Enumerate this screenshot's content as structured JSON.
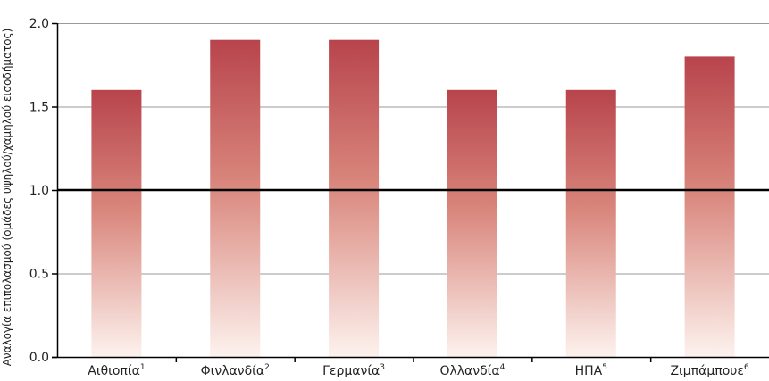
{
  "chart_data": {
    "type": "bar",
    "ylabel": "Αναλογία επιπολασμού (ομάδες υψηλού/χαμηλού εισοδήματος)",
    "ylim": [
      0,
      2.0
    ],
    "yticks": [
      "0.0",
      "0.5",
      "1.0",
      "1.5",
      "2.0"
    ],
    "reference_line": 1.0,
    "grid": true,
    "categories": [
      {
        "name": "Αιθιοπία",
        "sup": "1"
      },
      {
        "name": "Φινλανδία",
        "sup": "2"
      },
      {
        "name": "Γερμανία",
        "sup": "3"
      },
      {
        "name": "Ολλανδία",
        "sup": "4"
      },
      {
        "name": "ΗΠΑ",
        "sup": "5"
      },
      {
        "name": "Ζιμπάμπουε",
        "sup": "6"
      }
    ],
    "values": [
      1.6,
      1.9,
      1.9,
      1.6,
      1.6,
      1.8
    ],
    "colors": {
      "bar_top": "#b8444c",
      "bar_bottom": "#fdf2ee",
      "grid": "#9a9a9a",
      "axis": "#000000"
    }
  }
}
